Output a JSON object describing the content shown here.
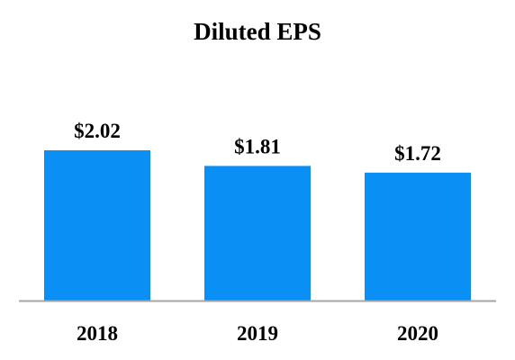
{
  "chart_data": {
    "type": "bar",
    "title": "Diluted EPS",
    "categories": [
      "2018",
      "2019",
      "2020"
    ],
    "values": [
      2.02,
      1.81,
      1.72
    ],
    "data_labels": [
      "$2.02",
      "$1.81",
      "$1.72"
    ],
    "xlabel": "",
    "ylabel": "",
    "ylim": [
      0,
      2.02
    ],
    "grid": false,
    "legend": "none",
    "colors": {
      "bar": "#0a8ff5",
      "axis": "#a6a6a6",
      "text": "#000000"
    }
  }
}
